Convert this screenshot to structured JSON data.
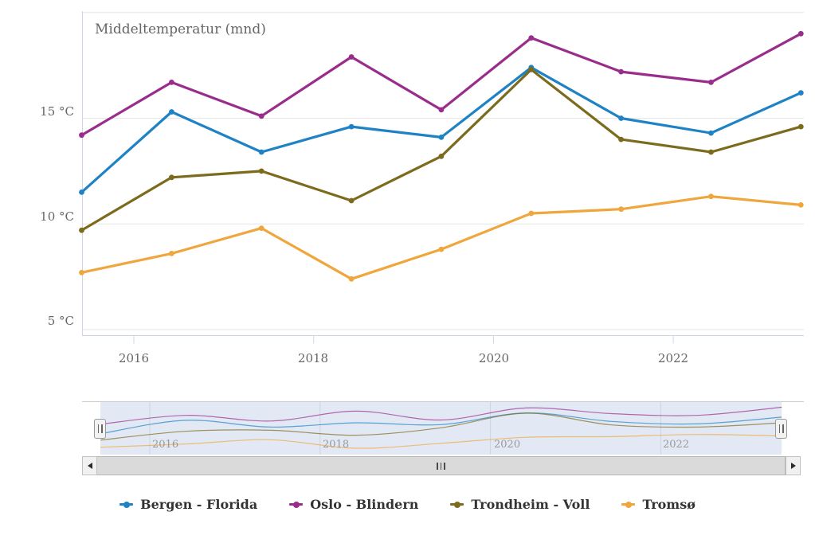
{
  "title": "Middeltemperatur (mnd)",
  "y_axis": {
    "labels": [
      "15 °C",
      "10 °C",
      "5 °C"
    ]
  },
  "x_axis": {
    "labels": [
      "2016",
      "2018",
      "2020",
      "2022"
    ]
  },
  "navigator": {
    "year_labels": [
      "2016",
      "2018",
      "2020",
      "2022"
    ],
    "left_handle_icon": "drag-handle-bars",
    "right_handle_icon": "drag-handle-bars"
  },
  "scrollbar": {
    "left_arrow_icon": "left-triangle",
    "right_arrow_icon": "right-triangle",
    "grip_icon": "three-grip-bars"
  },
  "colors": {
    "grid": "#e6e6e6",
    "axis_line": "#ccd6eb",
    "outline": "#cccccc",
    "title_text": "#666666",
    "axis_text": "#666666",
    "navigator_text": "#999999",
    "legend_text": "#333333",
    "navigator_mask": "rgba(102,133,194,0.18)"
  },
  "chart_data": {
    "type": "line",
    "title": "Middeltemperatur (mnd)",
    "x_years": [
      2015.42,
      2016.42,
      2017.42,
      2018.42,
      2019.42,
      2020.42,
      2021.42,
      2022.42,
      2023.42
    ],
    "x_tick_years": [
      2016,
      2018,
      2020,
      2022
    ],
    "y_ticks": [
      5,
      10,
      15,
      20
    ],
    "ylim": [
      4.7,
      20.1
    ],
    "ylabel": "°C",
    "grid": "horizontal",
    "legend_position": "bottom",
    "navigator": true,
    "series": [
      {
        "name": "Bergen - Florida",
        "color": "#1e82c4",
        "values": [
          11.5,
          15.3,
          13.4,
          14.6,
          14.1,
          17.4,
          15.0,
          14.3,
          16.2
        ]
      },
      {
        "name": "Oslo - Blindern",
        "color": "#9a2d8c",
        "values": [
          14.2,
          16.7,
          15.1,
          17.9,
          15.4,
          18.8,
          17.2,
          16.7,
          19.0
        ]
      },
      {
        "name": "Trondheim - Voll",
        "color": "#7c6b1d",
        "values": [
          9.7,
          12.2,
          12.5,
          11.1,
          13.2,
          17.3,
          14.0,
          13.4,
          14.6
        ]
      },
      {
        "name": "Tromsø",
        "color": "#efa63c",
        "values": [
          7.7,
          8.6,
          9.8,
          7.4,
          8.8,
          10.5,
          10.7,
          11.3,
          10.9
        ]
      }
    ]
  }
}
